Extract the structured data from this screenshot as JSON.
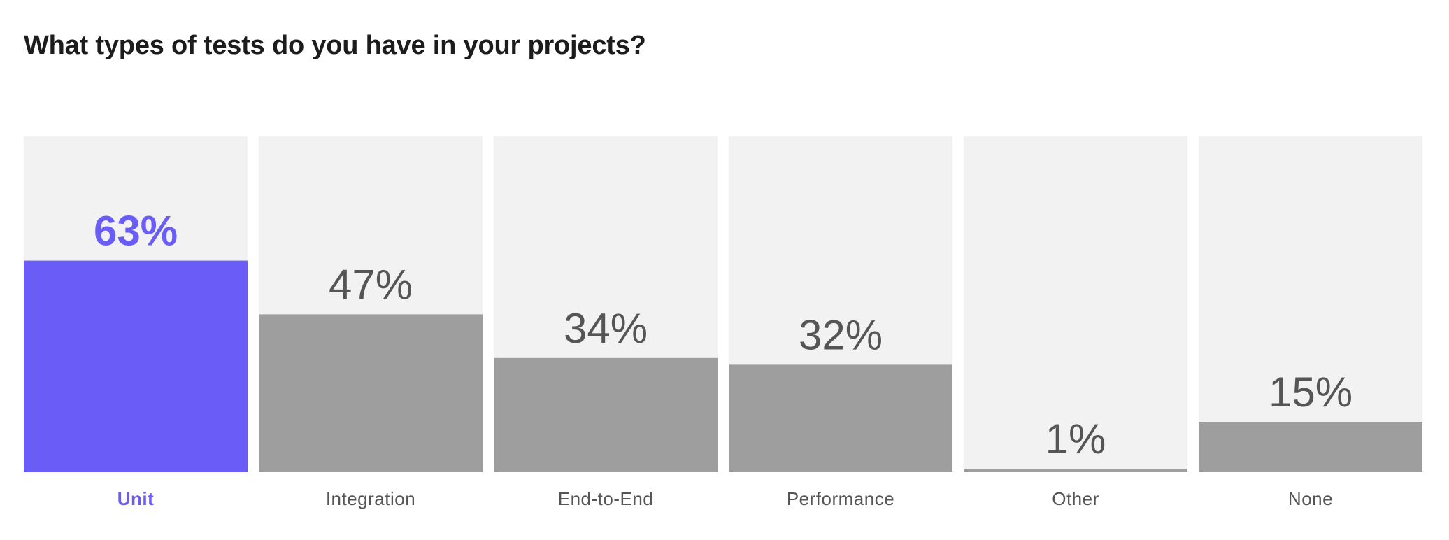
{
  "chart_data": {
    "type": "bar",
    "title": "What types of tests do you have in your projects?",
    "categories": [
      "Unit",
      "Integration",
      "End-to-End",
      "Performance",
      "Other",
      "None"
    ],
    "values": [
      63,
      47,
      34,
      32,
      1,
      15
    ],
    "value_labels": [
      "63%",
      "47%",
      "34%",
      "32%",
      "1%",
      "15%"
    ],
    "ylim": [
      0,
      100
    ],
    "highlight_index": 0,
    "grid": false,
    "legend": "none",
    "colors": {
      "highlight": "#6a5cf7",
      "bar": "#9e9e9e",
      "track": "#f2f2f2",
      "text": "#555555",
      "title": "#1c1c1c"
    }
  }
}
